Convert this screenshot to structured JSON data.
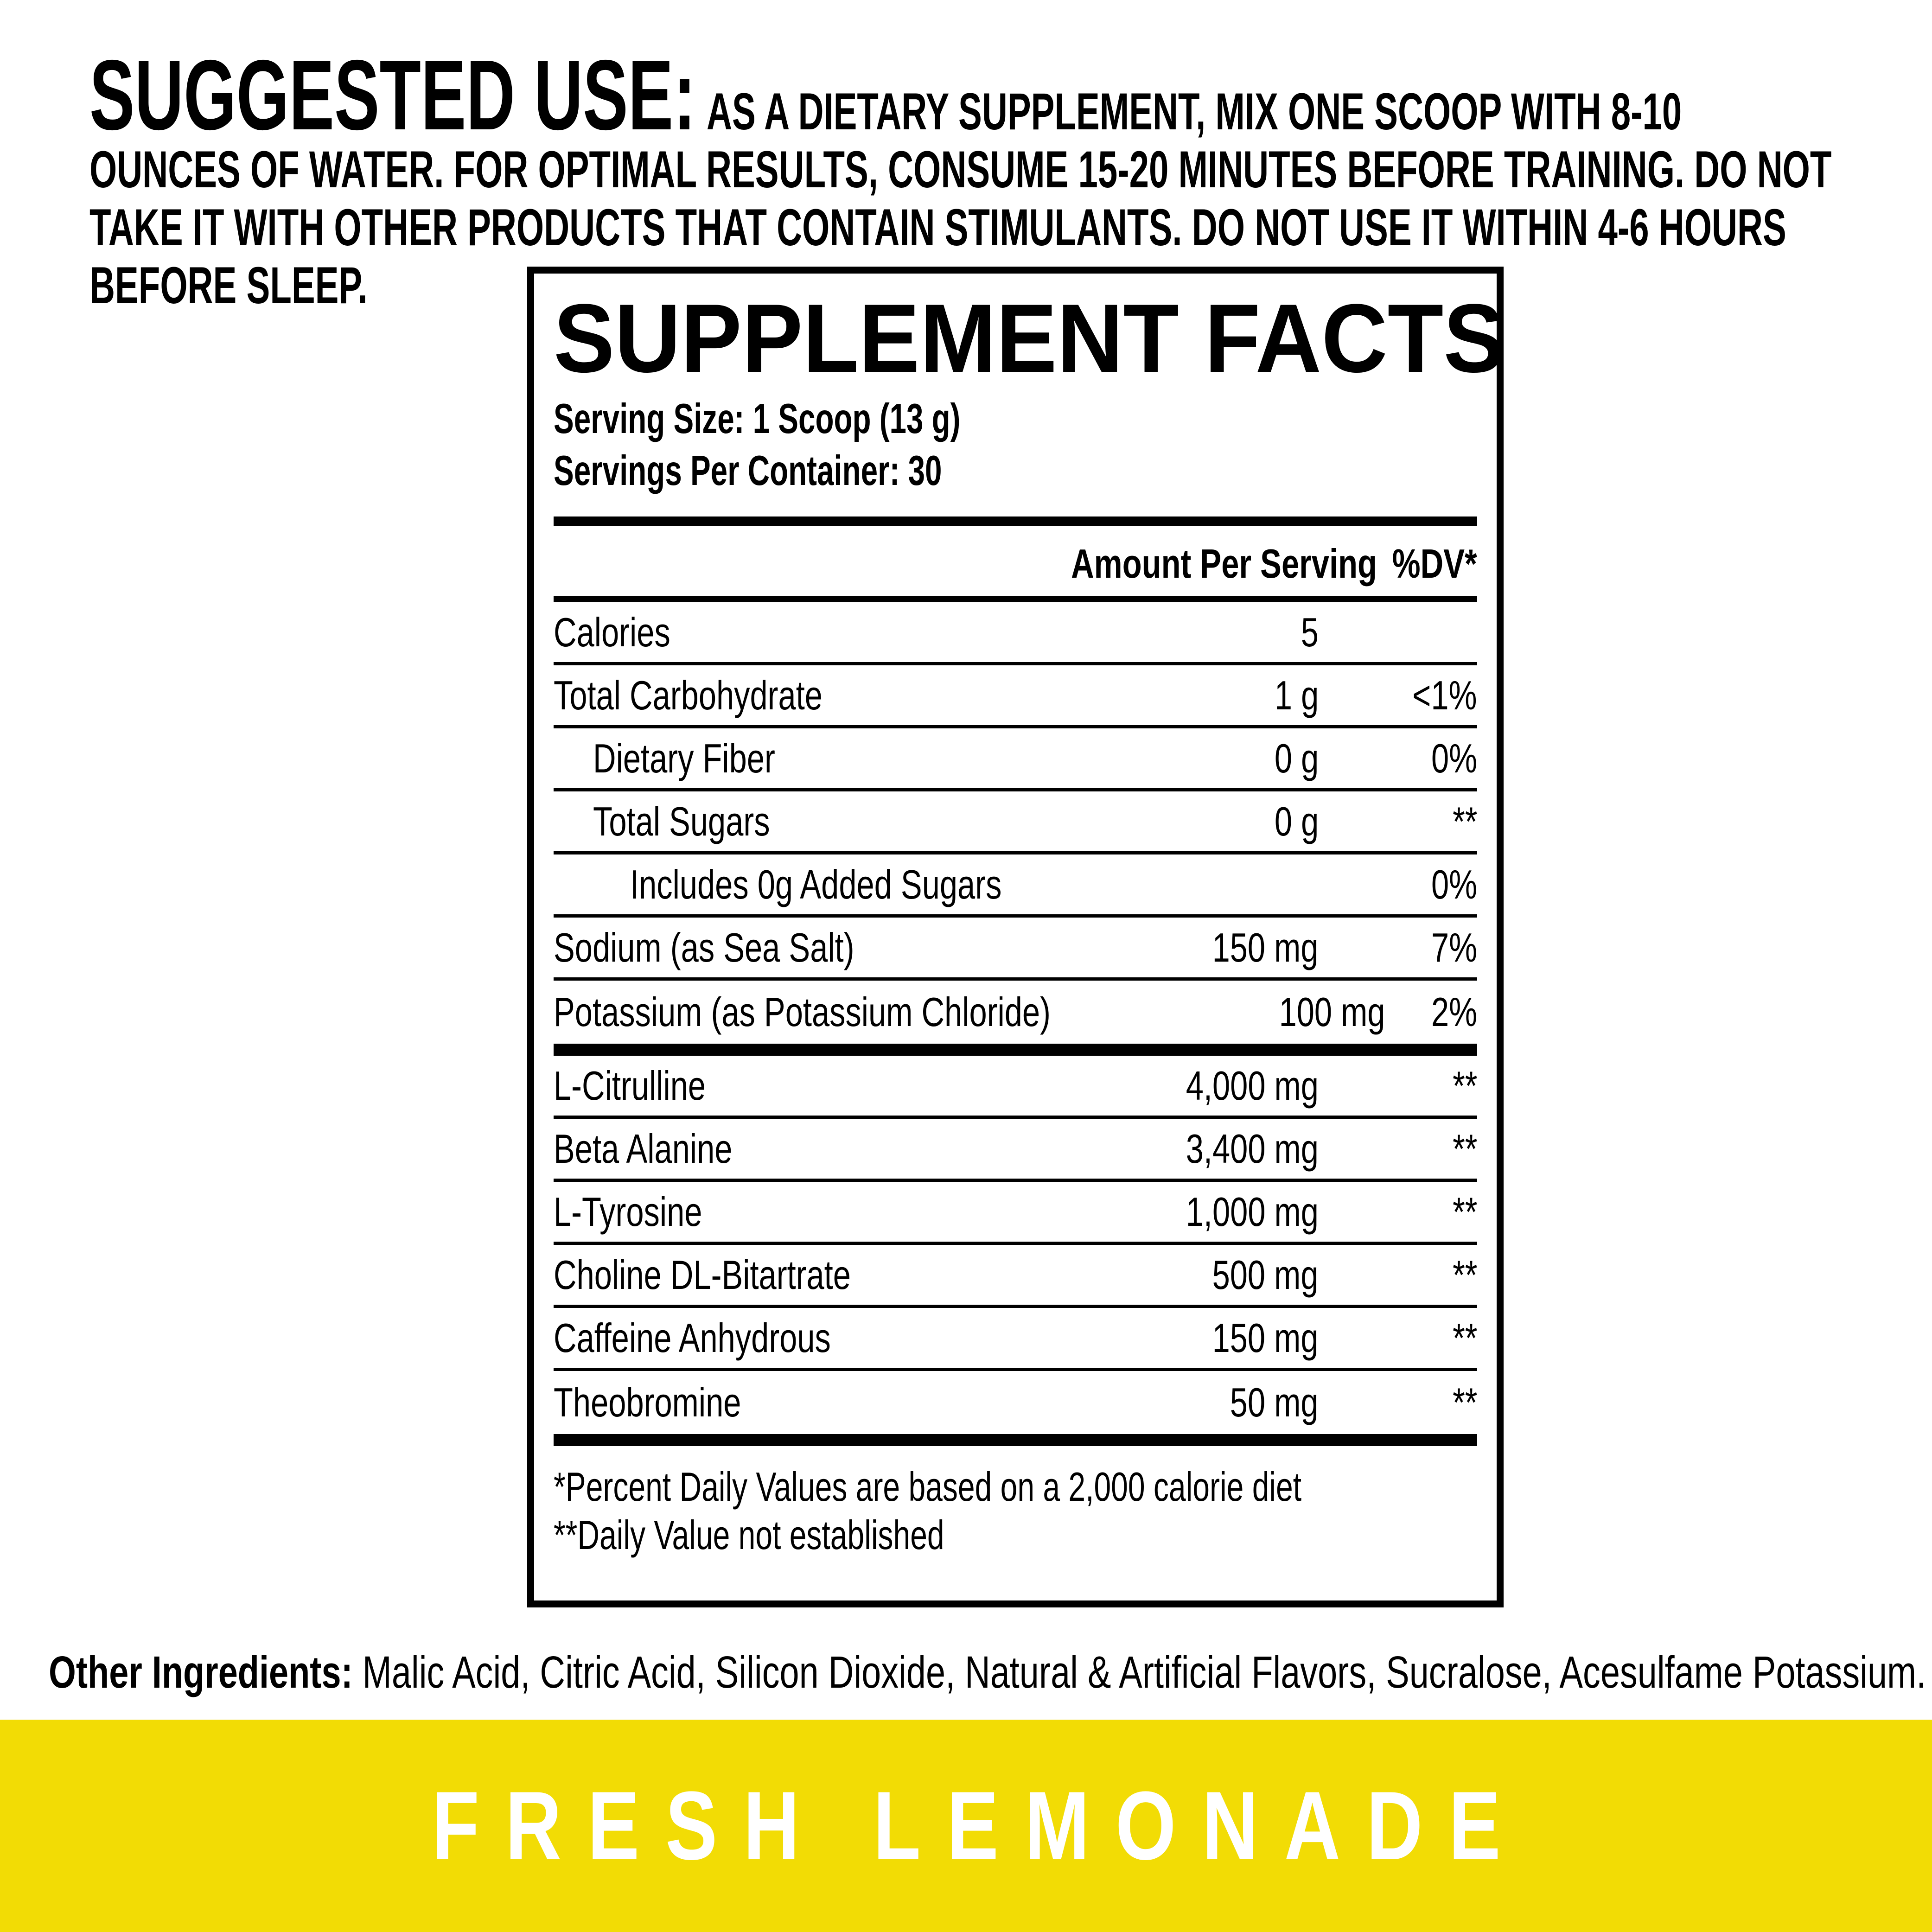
{
  "suggested_use": {
    "heading": "SUGGESTED USE:",
    "lines": [
      "AS A DIETARY SUPPLEMENT, MIX ONE SCOOP WITH 8-10",
      "OUNCES OF WATER. FOR OPTIMAL RESULTS, CONSUME 15-20 MINUTES BEFORE TRAINING. DO NOT",
      "TAKE IT WITH OTHER PRODUCTS THAT CONTAIN STIMULANTS. DO NOT USE IT WITHIN 4-6 HOURS",
      "BEFORE SLEEP."
    ]
  },
  "panel": {
    "title": "SUPPLEMENT FACTS",
    "serving_size": "Serving Size: 1 Scoop (13 g)",
    "servings_per_container": "Servings Per Container: 30",
    "columns": {
      "amount": "Amount Per Serving",
      "dv": "%DV*"
    },
    "rows": [
      {
        "name": "Calories",
        "amount": "5",
        "dv": "",
        "indent": 0
      },
      {
        "name": "Total Carbohydrate",
        "amount": "1 g",
        "dv": "<1%",
        "indent": 0
      },
      {
        "name": "Dietary Fiber",
        "amount": "0 g",
        "dv": "0%",
        "indent": 1
      },
      {
        "name": "Total Sugars",
        "amount": "0 g",
        "dv": "**",
        "indent": 1
      },
      {
        "name": "Includes 0g Added Sugars",
        "amount": "",
        "dv": "0%",
        "indent": 2
      },
      {
        "name": "Sodium (as Sea Salt)",
        "amount": "150 mg",
        "dv": "7%",
        "indent": 0
      },
      {
        "name": "Potassium (as Potassium Chloride)",
        "amount": "100 mg",
        "dv": "2%",
        "indent": 0
      }
    ],
    "ingredient_rows": [
      {
        "name": "L-Citrulline",
        "amount": "4,000 mg",
        "dv": "**",
        "indent": 0
      },
      {
        "name": "Beta Alanine",
        "amount": "3,400 mg",
        "dv": "**",
        "indent": 0
      },
      {
        "name": "L-Tyrosine",
        "amount": "1,000 mg",
        "dv": "**",
        "indent": 0
      },
      {
        "name": "Choline DL-Bitartrate",
        "amount": "500 mg",
        "dv": "**",
        "indent": 0
      },
      {
        "name": "Caffeine Anhydrous",
        "amount": "150 mg",
        "dv": "**",
        "indent": 0
      },
      {
        "name": "Theobromine",
        "amount": "50 mg",
        "dv": "**",
        "indent": 0
      }
    ],
    "footnotes": [
      "*Percent Daily Values are based on a 2,000 calorie diet",
      "**Daily Value not established"
    ]
  },
  "other_ingredients": {
    "label": "Other Ingredients:",
    "text": " Malic Acid, Citric Acid, Silicon Dioxide, Natural & Artificial Flavors, Sucralose, Acesulfame Potassium."
  },
  "flavor": {
    "name": "FRESH LEMONADE",
    "band_color": "#F2DC05",
    "text_color": "#FFFFFF"
  },
  "colors": {
    "ink": "#000000",
    "background": "#FFFFFF"
  }
}
